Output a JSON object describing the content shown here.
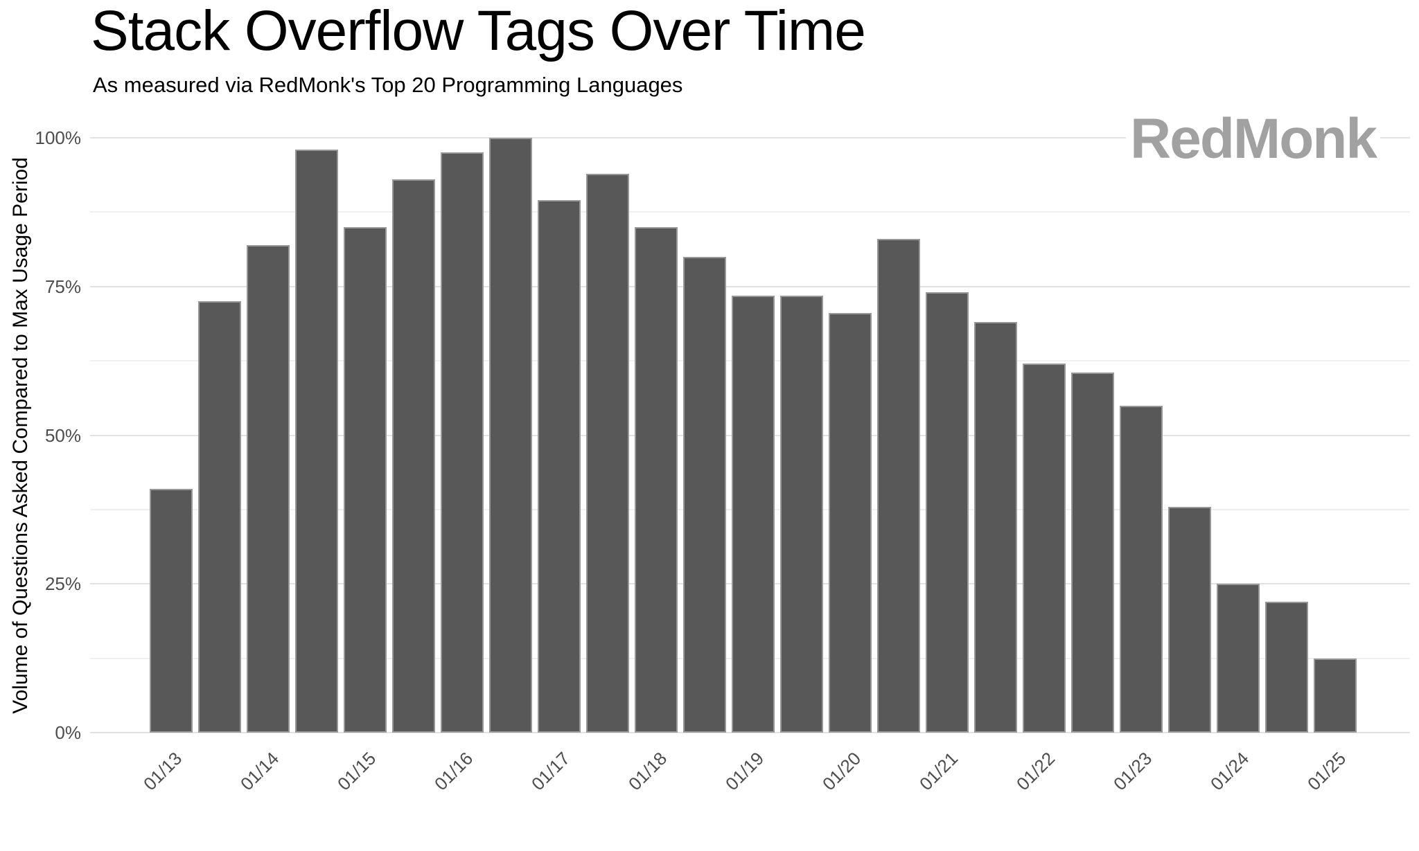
{
  "chart_data": {
    "type": "bar",
    "title": "Stack Overflow Tags Over Time",
    "subtitle": "As measured via RedMonk's Top 20 Programming Languages",
    "brand": "RedMonk",
    "ylabel": "Volume of Questions Asked Compared to Max Usage Period",
    "xlabel": "",
    "ylim": [
      0,
      100
    ],
    "y_axis": {
      "major_ticks": [
        {
          "value": 0,
          "label": "0%"
        },
        {
          "value": 25,
          "label": "25%"
        },
        {
          "value": 50,
          "label": "50%"
        },
        {
          "value": 75,
          "label": "75%"
        },
        {
          "value": 100,
          "label": "100%"
        }
      ],
      "minor_tick_values": [
        12.5,
        37.5,
        62.5,
        87.5
      ]
    },
    "x_axis": {
      "tick_labels": [
        "01/13",
        "01/14",
        "01/15",
        "01/16",
        "01/17",
        "01/18",
        "01/19",
        "01/20",
        "01/21",
        "01/22",
        "01/23",
        "01/24",
        "01/25"
      ],
      "tick_bar_indices": [
        0,
        2,
        4,
        6,
        8,
        10,
        12,
        14,
        16,
        18,
        20,
        22,
        24
      ],
      "rotation_degrees": 45
    },
    "values": [
      41,
      72.5,
      82,
      98,
      85,
      93,
      97.5,
      100,
      89.5,
      94,
      85,
      80,
      73.5,
      73.5,
      70.5,
      83,
      74,
      69,
      62,
      60.5,
      55,
      38,
      25,
      22,
      12.5
    ],
    "grid": {
      "horizontal_major_step": 25,
      "horizontal_minor_step": 12.5,
      "vertical_gridlines": false,
      "legend": "none"
    },
    "colors": {
      "background": "#ffffff",
      "bar_fill": "#585858",
      "bar_border": "#989898",
      "grid_major": "#e2e2e2",
      "grid_minor": "#f0f0f0",
      "axis_tick_label": "#4d4d4d",
      "title_text": "#000000",
      "brand": "#a1a1a1"
    }
  }
}
